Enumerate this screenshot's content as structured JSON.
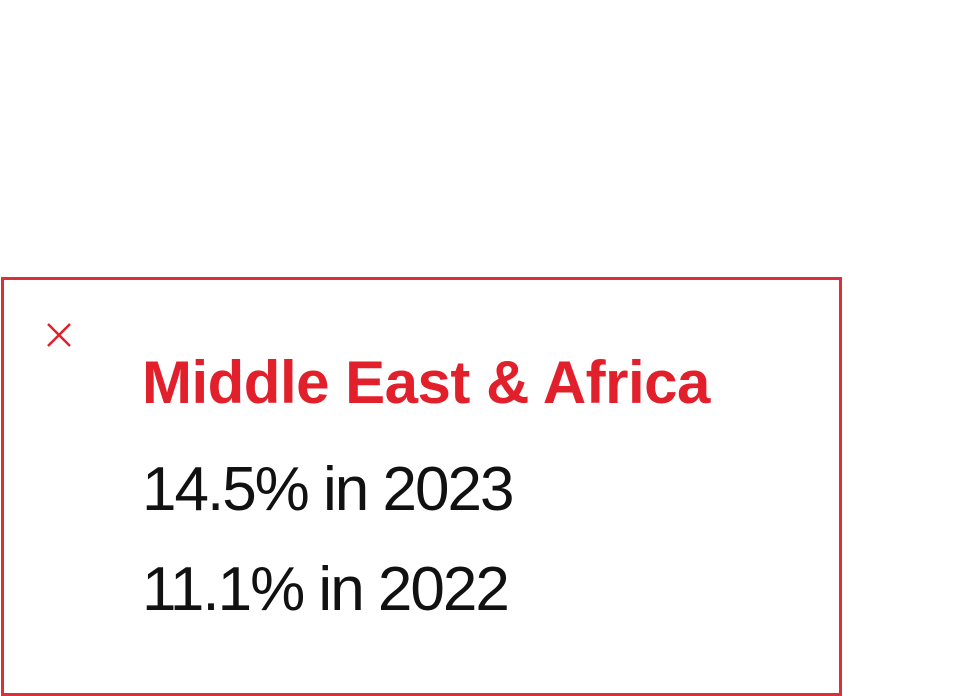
{
  "tooltip": {
    "title": "Middle East & Africa",
    "stats": [
      "14.5% in 2023",
      "11.1% in 2022"
    ],
    "close_icon": "close-icon",
    "colors": {
      "accent": "#e2202b",
      "border": "#d9303a",
      "text": "#111111",
      "background": "#ffffff"
    }
  }
}
